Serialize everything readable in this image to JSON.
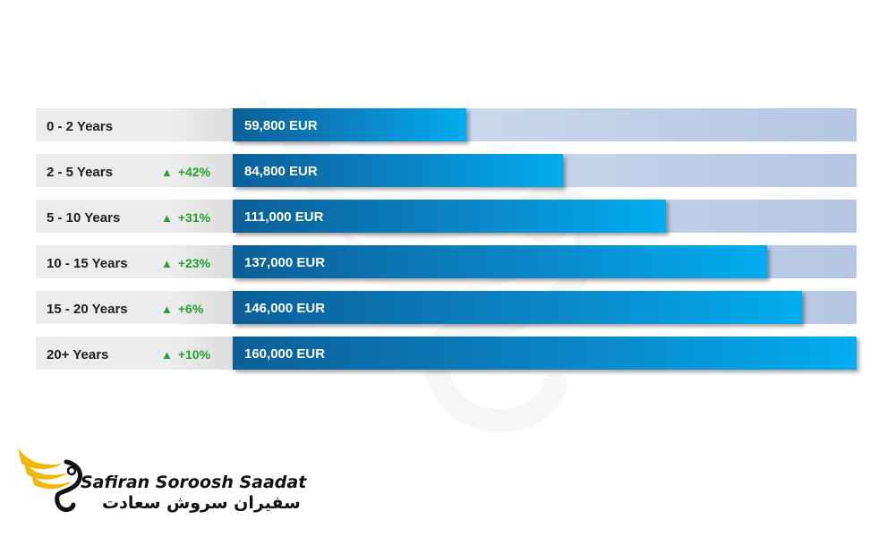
{
  "chart_data": {
    "type": "bar",
    "orientation": "horizontal",
    "unit": "EUR",
    "xlim": [
      0,
      160000
    ],
    "categories": [
      "0 - 2 Years",
      "2 - 5 Years",
      "5 - 10 Years",
      "10 - 15 Years",
      "15 - 20 Years",
      "20+ Years"
    ],
    "values": [
      59800,
      84800,
      111000,
      137000,
      146000,
      160000
    ],
    "value_labels": [
      "59,800 EUR",
      "84,800 EUR",
      "111,000 EUR",
      "137,000 EUR",
      "146,000 EUR",
      "160,000 EUR"
    ],
    "changes": [
      "",
      "+42%",
      "+31%",
      "+23%",
      "+6%",
      "+10%"
    ],
    "change_icon": "triangle-up-icon",
    "colors": {
      "bar_start": "#0b5f98",
      "bar_end": "#00adef",
      "track": "#c4d3ea",
      "label_bg": "#ececec",
      "change": "#25a032"
    }
  },
  "logo": {
    "brand_latin": "Safiran Soroosh Saadat",
    "brand_persian": "سفیران سروش سعادت",
    "icon": "wing-logo-icon",
    "colors": {
      "wing": "#f2b705",
      "text": "#111111"
    }
  },
  "watermark": {
    "icon": "wing-watermark-icon"
  }
}
